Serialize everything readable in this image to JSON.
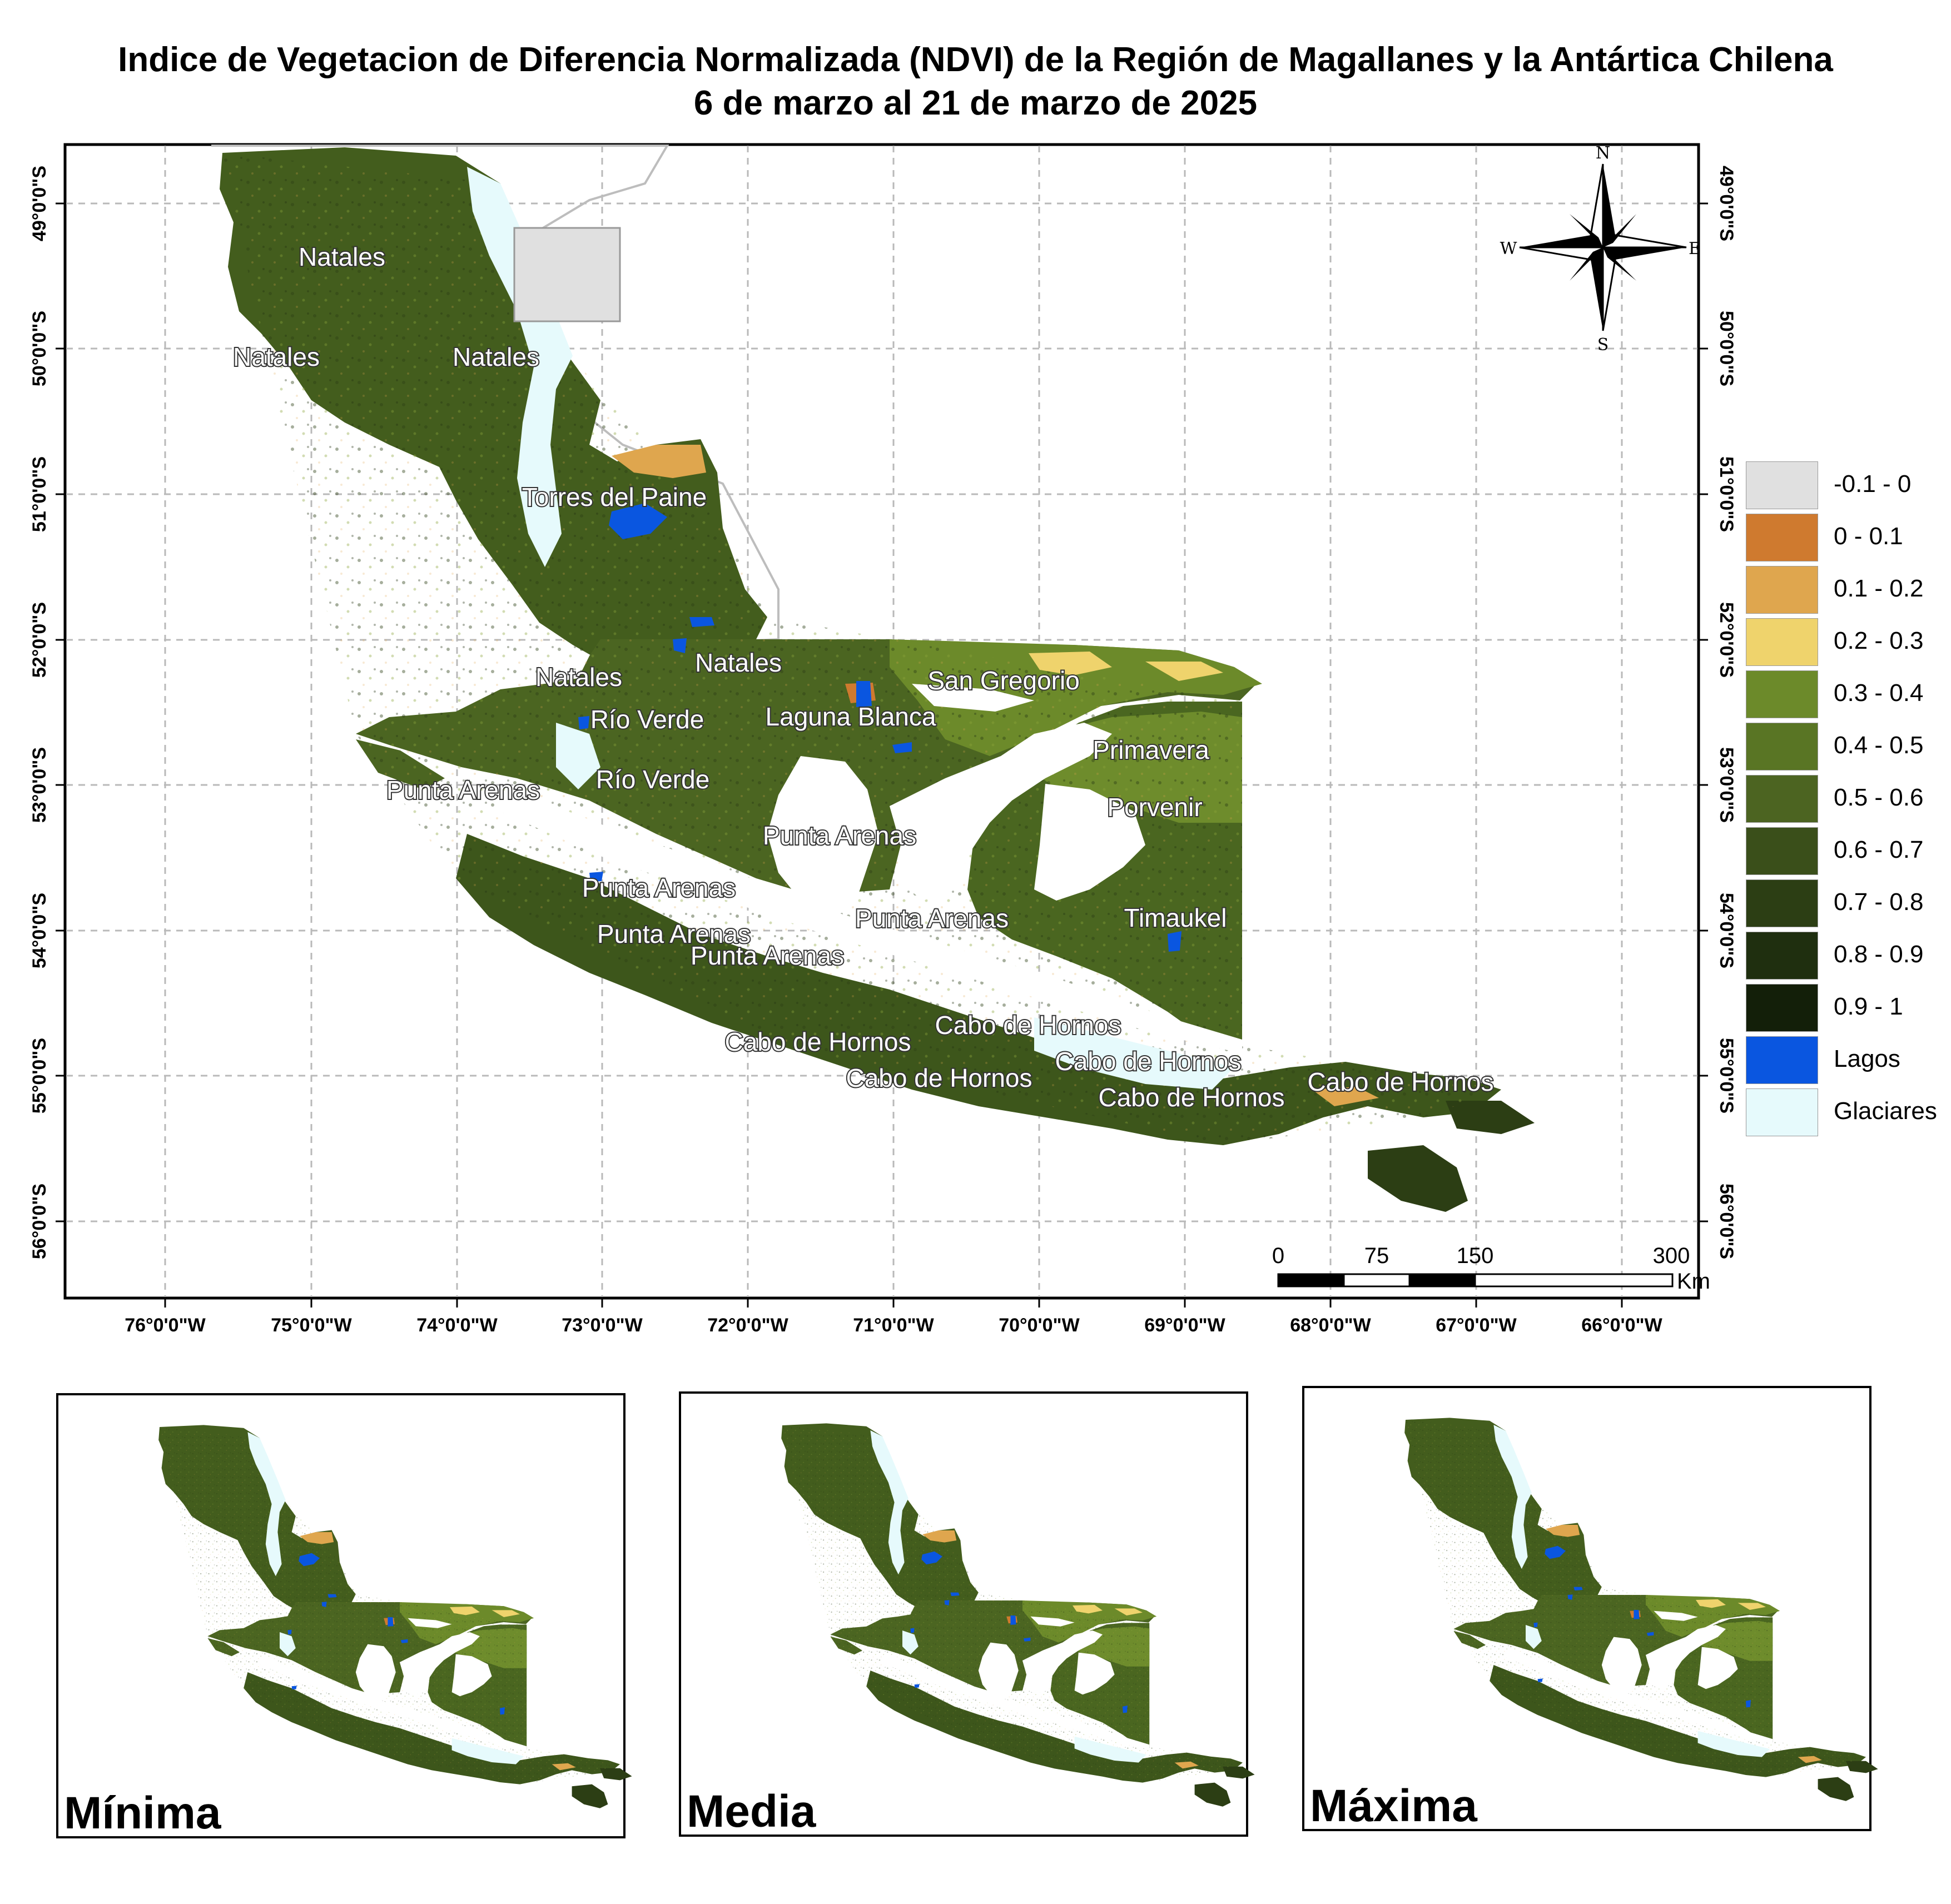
{
  "title": {
    "line1": "Indice de Vegetacion de Diferencia Normalizada (NDVI) de la Región de Magallanes y la Antártica Chilena",
    "line2": "6 de marzo al 21 de marzo de 2025"
  },
  "map": {
    "lon_ticks": [
      "76°0'0\"W",
      "75°0'0\"W",
      "74°0'0\"W",
      "73°0'0\"W",
      "72°0'0\"W",
      "71°0'0\"W",
      "70°0'0\"W",
      "69°0'0\"W",
      "68°0'0\"W",
      "67°0'0\"W",
      "66°0'0\"W"
    ],
    "lat_ticks": [
      "49°0'0\"S",
      "50°0'0\"S",
      "51°0'0\"S",
      "52°0'0\"S",
      "53°0'0\"S",
      "54°0'0\"S",
      "55°0'0\"S",
      "56°0'0\"S"
    ],
    "place_labels": [
      "Natales",
      "Natales",
      "Natales",
      "Torres del Paine",
      "Natales",
      "Natales",
      "San Gregorio",
      "Río Verde",
      "Laguna Blanca",
      "Primavera",
      "Punta Arenas",
      "Río Verde",
      "Porvenir",
      "Punta Arenas",
      "Punta Arenas",
      "Punta Arenas",
      "Timaukel",
      "Punta Arenas",
      "Punta Arenas",
      "Cabo de Hornos",
      "Cabo de Hornos",
      "Cabo de Hornos",
      "Cabo de Hornos",
      "Cabo de Hornos",
      "Cabo de Hornos"
    ],
    "north_arrow": {
      "n": "N",
      "s": "S",
      "e": "E",
      "w": "W"
    },
    "scale_bar": {
      "labels": [
        "0",
        "75",
        "150",
        "300"
      ],
      "unit": "Km"
    }
  },
  "legend": [
    {
      "label": "-0.1 - 0",
      "color": "#e0e0e0"
    },
    {
      "label": "0 - 0.1",
      "color": "#cf7a2f"
    },
    {
      "label": "0.1 - 0.2",
      "color": "#dfa64e"
    },
    {
      "label": "0.2 - 0.3",
      "color": "#efd36c"
    },
    {
      "label": "0.3 - 0.4",
      "color": "#6c8a2a"
    },
    {
      "label": "0.4 - 0.5",
      "color": "#597524"
    },
    {
      "label": "0.5 - 0.6",
      "color": "#4c6421"
    },
    {
      "label": "0.6 - 0.7",
      "color": "#3a4f1a"
    },
    {
      "label": "0.7 - 0.8",
      "color": "#2c3e14"
    },
    {
      "label": "0.8 - 0.9",
      "color": "#1f2f0f"
    },
    {
      "label": "0.9 - 1",
      "color": "#131f09"
    },
    {
      "label": "Lagos",
      "color": "#0a56e0"
    },
    {
      "label": "Glaciares",
      "color": "#e6fafc"
    }
  ],
  "insets": [
    {
      "label": "Mínima"
    },
    {
      "label": "Media"
    },
    {
      "label": "Máxima"
    }
  ]
}
